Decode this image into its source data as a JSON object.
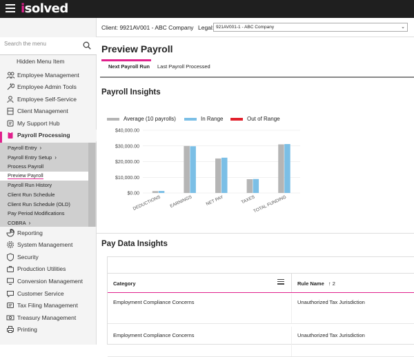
{
  "brand": {
    "logo_text": "solved",
    "logo_prefix": "i",
    "accent": "#e0208c"
  },
  "search": {
    "placeholder": "Search the menu"
  },
  "sidebar": {
    "hidden_item": "Hidden Menu Item",
    "items_top": [
      {
        "label": "Employee Management",
        "icon": "people-icon"
      },
      {
        "label": "Employee Admin Tools",
        "icon": "wrench-icon"
      },
      {
        "label": "Employee Self-Service",
        "icon": "person-icon"
      },
      {
        "label": "Client Management",
        "icon": "building-icon"
      },
      {
        "label": "My Support Hub",
        "icon": "headset-icon"
      },
      {
        "label": "Payroll Processing",
        "icon": "clipboard-icon"
      }
    ],
    "submenu": [
      {
        "label": "Payroll Entry",
        "chevron": true
      },
      {
        "label": "Payroll Entry Setup",
        "chevron": true
      },
      {
        "label": "Process Payroll",
        "chevron": false
      },
      {
        "label": "Preview Payroll",
        "chevron": false,
        "selected": true
      },
      {
        "label": "Payroll Run History",
        "chevron": false
      },
      {
        "label": "Client Run Schedule",
        "chevron": false
      },
      {
        "label": "Client Run Schedule (OLD)",
        "chevron": false
      },
      {
        "label": "Pay Period Modifications",
        "chevron": false
      },
      {
        "label": "COBRA",
        "chevron": true
      }
    ],
    "items_bottom": [
      {
        "label": "Reporting",
        "icon": "chart-icon"
      },
      {
        "label": "System Management",
        "icon": "gear-icon"
      },
      {
        "label": "Security",
        "icon": "lock-icon"
      },
      {
        "label": "Production Utilities",
        "icon": "toolbox-icon"
      },
      {
        "label": "Conversion Management",
        "icon": "monitor-icon"
      },
      {
        "label": "Customer Service",
        "icon": "chat-icon"
      },
      {
        "label": "Tax Filing Management",
        "icon": "document-icon"
      },
      {
        "label": "Treasury Management",
        "icon": "money-icon"
      },
      {
        "label": "Printing",
        "icon": "printer-icon"
      }
    ]
  },
  "client_bar": {
    "client": "Client: 9921AV001 - ABC Company",
    "legal_label": "Legal:",
    "legal_value": "921AV001-1 - ABC Company"
  },
  "page": {
    "title": "Preview Payroll",
    "tabs": [
      {
        "label": "Next Payroll Run",
        "active": true
      },
      {
        "label": "Last Payroll Processed",
        "active": false
      }
    ]
  },
  "insights": {
    "title": "Payroll Insights",
    "legend": [
      {
        "label": "Average (10 payrolls)",
        "color": "#b5b5b5"
      },
      {
        "label": "In Range",
        "color": "#7bbfe6"
      },
      {
        "label": "Out of Range",
        "color": "#e2202c"
      }
    ]
  },
  "chart_data": {
    "type": "bar",
    "categories": [
      "DEDUCTIONS",
      "EARNINGS",
      "NET PAY",
      "TAXES",
      "TOTAL FUNDING"
    ],
    "series": [
      {
        "name": "Average (10 payrolls)",
        "values": [
          1200,
          30000,
          22000,
          8800,
          31000
        ]
      },
      {
        "name": "In Range",
        "values": [
          1300,
          29800,
          22500,
          8900,
          31200
        ]
      }
    ],
    "yticks": [
      "$40,000.00",
      "$30,000.00",
      "$20,000.00",
      "$10,000.00",
      "$0.00"
    ],
    "ylim": [
      0,
      40000
    ],
    "colors": {
      "avg": "#b5b5b5",
      "in": "#7bbfe6",
      "out": "#e2202c"
    }
  },
  "pay_data": {
    "title": "Pay Data Insights",
    "columns": {
      "category": "Category",
      "rule": "Rule Name",
      "sort": "↑ 2"
    },
    "rows": [
      {
        "category": "Employment Compliance Concerns",
        "rule": "Unauthorized Tax Jurisdiction"
      },
      {
        "category": "Employment Compliance Concerns",
        "rule": "Unauthorized Tax Jurisdiction"
      }
    ]
  }
}
